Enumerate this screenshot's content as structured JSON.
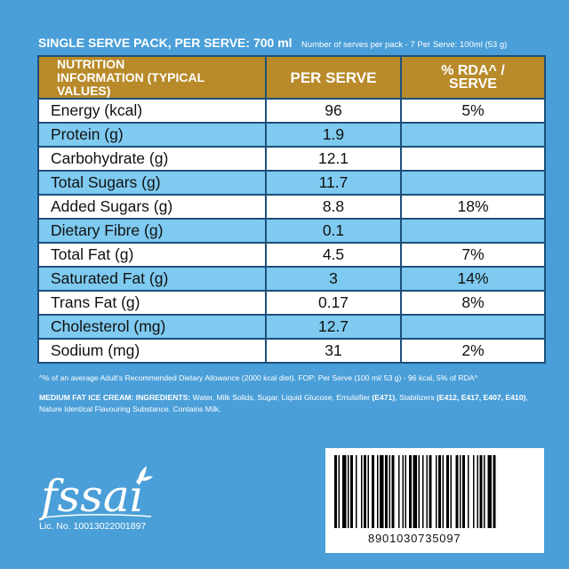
{
  "header": {
    "title": "SINGLE SERVE PACK, PER SERVE: 700 ml",
    "note": "Number of serves per pack - 7 Per Serve: 100ml (53 g)"
  },
  "table": {
    "headers": [
      "NUTRITION INFORMATION (TYPICAL VALUES)",
      "PER SERVE",
      "% RDA^ / SERVE"
    ],
    "rows": [
      {
        "name": "Energy (kcal)",
        "per_serve": "96",
        "rda": "5%"
      },
      {
        "name": "Protein (g)",
        "per_serve": "1.9",
        "rda": ""
      },
      {
        "name": "Carbohydrate (g)",
        "per_serve": "12.1",
        "rda": ""
      },
      {
        "name": "Total Sugars (g)",
        "per_serve": "11.7",
        "rda": ""
      },
      {
        "name": "Added Sugars (g)",
        "per_serve": "8.8",
        "rda": "18%"
      },
      {
        "name": "Dietary Fibre (g)",
        "per_serve": "0.1",
        "rda": ""
      },
      {
        "name": "Total Fat (g)",
        "per_serve": "4.5",
        "rda": "7%"
      },
      {
        "name": "Saturated Fat (g)",
        "per_serve": "3",
        "rda": "14%"
      },
      {
        "name": "Trans Fat (g)",
        "per_serve": "0.17",
        "rda": "8%"
      },
      {
        "name": "Cholesterol (mg)",
        "per_serve": "12.7",
        "rda": ""
      },
      {
        "name": "Sodium (mg)",
        "per_serve": "31",
        "rda": "2%"
      }
    ]
  },
  "footnote": "^% of an average Adult's Recommended Dietary Allowance (2000 kcal diet). FOP: Per Serve (100 ml/ 53 g) - 96 kcal, 5% of RDA^",
  "ingredients": {
    "heading": "MEDIUM FAT ICE CREAM: INGREDIENTS:",
    "part1": " Water, Milk Solids, Sugar, Liquid Glucose, Emulsifier ",
    "code1": "(E471)",
    "part2": ", Stabilizers ",
    "code2": "(E412, E417, E407, E410)",
    "part3": ", Nature Identical Flavouring Substance. Contains Milk."
  },
  "logo": {
    "text": "fssai",
    "license": "Lic. No. 10013022001897"
  },
  "barcode": {
    "number": "8901030735097"
  },
  "colors": {
    "background": "#4a9fd8",
    "header_fill": "#b88a2a",
    "alt_row": "#7fcaf0",
    "grid_line": "#1d4f7a"
  }
}
